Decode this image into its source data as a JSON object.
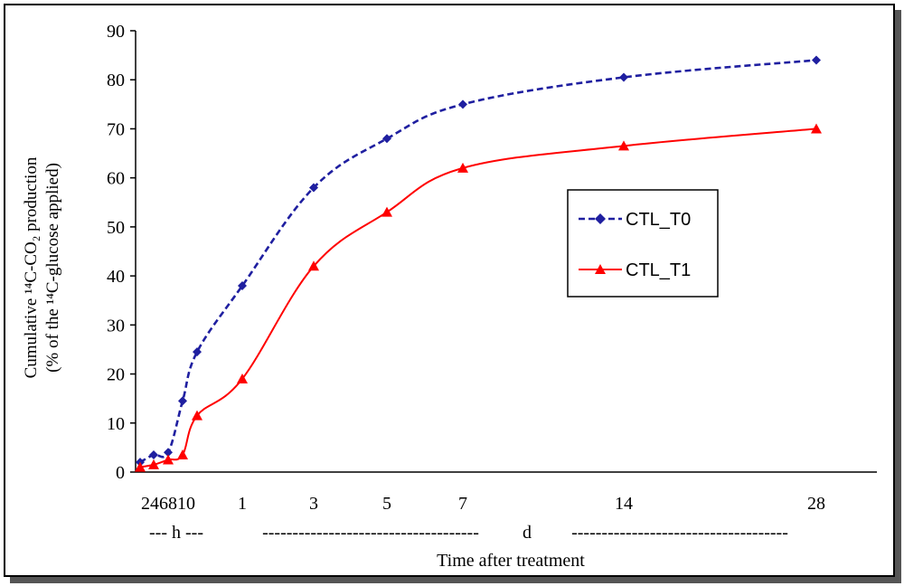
{
  "chart_data": {
    "type": "line",
    "title": "",
    "xlabel": "Time after treatment",
    "ylabel_line1": "Cumulative ¹⁴C-CO₂ production",
    "ylabel_line2": "(% of the ¹⁴C-glucose applied)",
    "ylim": [
      0,
      90
    ],
    "yticks": [
      0,
      10,
      20,
      30,
      40,
      50,
      60,
      70,
      80,
      90
    ],
    "hour_tick_label": "246810",
    "day_tick_labels": [
      "1",
      "3",
      "5",
      "7",
      "14",
      "28"
    ],
    "unit_h": "--- h ---",
    "unit_d_dashes_left": "------------------------------------",
    "unit_d_letter": "d",
    "unit_d_dashes_right": "------------------------------------",
    "legend_position": "right-middle",
    "series": [
      {
        "name": "CTL_T0",
        "color": "#1f1fa0",
        "marker": "diamond",
        "line_style": "dashed",
        "points": [
          {
            "x": "2h",
            "y": 2
          },
          {
            "x": "4h",
            "y": 3.5
          },
          {
            "x": "6h",
            "y": 4
          },
          {
            "x": "8h",
            "y": 14.5
          },
          {
            "x": "10h",
            "y": 24.5
          },
          {
            "x": "1d",
            "y": 38
          },
          {
            "x": "3d",
            "y": 58
          },
          {
            "x": "5d",
            "y": 68
          },
          {
            "x": "7d",
            "y": 75
          },
          {
            "x": "14d",
            "y": 80.5
          },
          {
            "x": "28d",
            "y": 84
          }
        ]
      },
      {
        "name": "CTL_T1",
        "color": "#ff0000",
        "marker": "triangle",
        "line_style": "solid",
        "points": [
          {
            "x": "2h",
            "y": 1
          },
          {
            "x": "4h",
            "y": 1.5
          },
          {
            "x": "6h",
            "y": 2.5
          },
          {
            "x": "8h",
            "y": 3.5
          },
          {
            "x": "10h",
            "y": 11.5
          },
          {
            "x": "1d",
            "y": 19
          },
          {
            "x": "3d",
            "y": 42
          },
          {
            "x": "5d",
            "y": 53
          },
          {
            "x": "7d",
            "y": 62
          },
          {
            "x": "14d",
            "y": 66.5
          },
          {
            "x": "28d",
            "y": 70
          }
        ]
      }
    ]
  }
}
